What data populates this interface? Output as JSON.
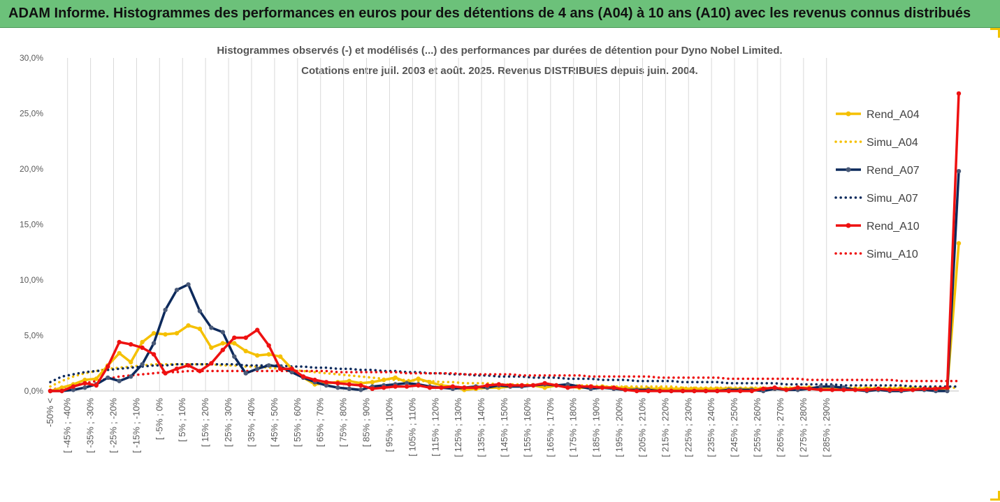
{
  "header": {
    "title": "ADAM Informe. Histogrammes des performances en euros pour des détentions de 4 ans (A04) à 10 ans (A10) avec les revenus connus distribués"
  },
  "chart_data": {
    "type": "line",
    "title": "Histogrammes observés (-) et modélisés (...) des performances par durées de détention pour Dyno Nobel Limited.",
    "subtitle": "Cotations entre juil. 2003 et août. 2025. Revenus DISTRIBUES depuis juin. 2004.",
    "xlabel": "",
    "ylabel": "",
    "ylim": [
      0,
      30
    ],
    "yticks": [
      "0,0%",
      "5,0%",
      "10,0%",
      "15,0%",
      "20,0%",
      "25,0%",
      "30,0%"
    ],
    "grid": "vertical",
    "legend_position": "right",
    "x_tick_labels": [
      "-50% <",
      "[ -45% ; -40%",
      "[ -35% ; -30%",
      "[ -25% ; -20%",
      "[ -15% ; -10%",
      "[ -5% ; 0%",
      "[ 5% ; 10%",
      "[ 15% ; 20%",
      "[ 25% ; 30%",
      "[ 35% ; 40%",
      "[ 45% ; 50%",
      "[ 55% ; 60%",
      "[ 65% ; 70%",
      "[ 75% ; 80%",
      "[ 85% ; 90%",
      "[ 95% ; 100%",
      "[ 105% ; 110%",
      "[ 115% ; 120%",
      "[ 125% ; 130%",
      "[ 135% ; 140%",
      "[ 145% ; 150%",
      "[ 155% ; 160%",
      "[ 165% ; 170%",
      "[ 175% ; 180%",
      "[ 185% ; 190%",
      "[ 195% ; 200%",
      "[ 205% ; 210%",
      "[ 215% ; 220%",
      "[ 225% ; 230%",
      "[ 235% ; 240%",
      "[ 245% ; 250%",
      "[ 255% ; 260%",
      "[ 265% ; 270%",
      "[ 275% ; 280%",
      "[ 285% ; 290%"
    ],
    "series": [
      {
        "name": "Rend_A04",
        "style": "solid",
        "color": "#f5c000",
        "values": [
          0,
          0.3,
          0.6,
          1.0,
          1.1,
          2.3,
          3.4,
          2.6,
          4.4,
          5.2,
          5.1,
          5.2,
          5.9,
          5.6,
          3.9,
          4.3,
          4.3,
          3.6,
          3.2,
          3.3,
          3.1,
          2.0,
          1.2,
          0.6,
          0.7,
          0.8,
          0.9,
          0.7,
          0.8,
          1.0,
          1.2,
          0.8,
          1.1,
          0.8,
          0.5,
          0.4,
          0.1,
          0.2,
          0.3,
          0.3,
          0.4,
          0.5,
          0.5,
          0.3,
          0.5,
          0.4,
          0.3,
          0.3,
          0.4,
          0.3,
          0.3,
          0.2,
          0.2,
          0.2,
          0.2,
          0.2,
          0.2,
          0.2,
          0.2,
          0.2,
          0.2,
          0.2,
          0.2,
          0.2,
          0.2,
          0.3,
          0.3,
          0.3,
          0.2,
          0.2,
          0.2,
          0.2,
          0.2,
          0.2,
          0.2,
          0.2,
          0.2,
          0.2,
          0.2,
          13.3
        ]
      },
      {
        "name": "Simu_A04",
        "style": "dotted",
        "color": "#f5c000",
        "values": [
          0.4,
          0.9,
          1.3,
          1.6,
          1.8,
          2.0,
          2.1,
          2.2,
          2.3,
          2.4,
          2.4,
          2.4,
          2.4,
          2.4,
          2.4,
          2.3,
          2.3,
          2.2,
          2.2,
          2.1,
          2.0,
          1.9,
          1.8,
          1.7,
          1.6,
          1.5,
          1.4,
          1.3,
          1.2,
          1.1,
          1.0,
          1.0,
          0.9,
          0.9,
          0.8,
          0.8,
          0.7,
          0.7,
          0.7,
          0.6,
          0.6,
          0.6,
          0.6,
          0.5,
          0.5,
          0.5,
          0.5,
          0.5,
          0.4,
          0.4,
          0.4,
          0.4,
          0.4,
          0.4,
          0.4,
          0.3,
          0.3,
          0.3,
          0.3,
          0.3,
          0.3,
          0.3,
          0.3,
          0.3,
          0.3,
          0.3,
          0.3,
          0.3,
          0.3,
          0.3,
          0.3,
          0.3,
          0.3,
          0.3,
          0.3,
          0.3,
          0.3,
          0.3,
          0.3,
          0.3
        ]
      },
      {
        "name": "Rend_A07",
        "style": "solid",
        "color": "#0d2a5c",
        "values": [
          0,
          0,
          0.1,
          0.3,
          0.6,
          1.2,
          0.9,
          1.3,
          2.4,
          4.3,
          7.3,
          9.1,
          9.6,
          7.2,
          5.7,
          5.3,
          3.1,
          1.6,
          2.0,
          2.3,
          2.2,
          1.7,
          1.2,
          0.8,
          0.5,
          0.3,
          0.2,
          0.1,
          0.4,
          0.5,
          0.6,
          0.7,
          0.6,
          0.4,
          0.3,
          0.2,
          0.3,
          0.4,
          0.3,
          0.5,
          0.4,
          0.4,
          0.5,
          0.6,
          0.5,
          0.6,
          0.4,
          0.2,
          0.3,
          0.2,
          0.1,
          0.1,
          0.1,
          0.0,
          0.0,
          0.0,
          0.0,
          0.0,
          0.0,
          0.1,
          0.1,
          0.1,
          0.0,
          0.2,
          0.1,
          0.1,
          0.2,
          0.4,
          0.4,
          0.3,
          0.1,
          0.0,
          0.1,
          0.0,
          0.0,
          0.1,
          0.1,
          0.0,
          0.0,
          19.8
        ]
      },
      {
        "name": "Simu_A07",
        "style": "dotted",
        "color": "#0d2a5c",
        "values": [
          0.8,
          1.3,
          1.5,
          1.7,
          1.8,
          1.9,
          2.0,
          2.1,
          2.2,
          2.3,
          2.3,
          2.4,
          2.4,
          2.4,
          2.4,
          2.4,
          2.4,
          2.3,
          2.3,
          2.3,
          2.3,
          2.2,
          2.2,
          2.1,
          2.1,
          2.0,
          2.0,
          1.9,
          1.9,
          1.8,
          1.8,
          1.7,
          1.7,
          1.6,
          1.6,
          1.5,
          1.5,
          1.4,
          1.4,
          1.3,
          1.3,
          1.3,
          1.2,
          1.2,
          1.2,
          1.1,
          1.1,
          1.1,
          1.0,
          1.0,
          1.0,
          0.9,
          0.9,
          0.9,
          0.9,
          0.8,
          0.8,
          0.8,
          0.8,
          0.7,
          0.7,
          0.7,
          0.7,
          0.7,
          0.6,
          0.6,
          0.6,
          0.6,
          0.6,
          0.5,
          0.5,
          0.5,
          0.5,
          0.5,
          0.5,
          0.4,
          0.4,
          0.4,
          0.4,
          0.4
        ]
      },
      {
        "name": "Rend_A10",
        "style": "solid",
        "color": "#ee1111",
        "values": [
          0,
          0,
          0.4,
          0.7,
          0.5,
          2.2,
          4.4,
          4.2,
          3.9,
          3.3,
          1.6,
          2.0,
          2.3,
          1.8,
          2.5,
          3.7,
          4.8,
          4.8,
          5.5,
          4.1,
          2.0,
          2.0,
          1.3,
          1.0,
          0.8,
          0.7,
          0.6,
          0.5,
          0.2,
          0.3,
          0.4,
          0.4,
          0.5,
          0.3,
          0.3,
          0.4,
          0.3,
          0.3,
          0.5,
          0.6,
          0.5,
          0.5,
          0.5,
          0.7,
          0.5,
          0.3,
          0.4,
          0.4,
          0.3,
          0.3,
          0.1,
          0.0,
          0.0,
          0.0,
          0.0,
          0.0,
          0.0,
          0.0,
          0.0,
          0.0,
          0.0,
          0.0,
          0.2,
          0.3,
          0.1,
          0.3,
          0.2,
          0.1,
          0.1,
          0.1,
          0.1,
          0.1,
          0.2,
          0.1,
          0.1,
          0.1,
          0.2,
          0.2,
          0.3,
          26.8
        ]
      },
      {
        "name": "Simu_A10",
        "style": "dotted",
        "color": "#ee1111",
        "values": [
          0.1,
          0.3,
          0.5,
          0.7,
          0.9,
          1.1,
          1.3,
          1.4,
          1.5,
          1.6,
          1.7,
          1.7,
          1.8,
          1.8,
          1.8,
          1.8,
          1.8,
          1.8,
          1.8,
          1.8,
          1.8,
          1.8,
          1.8,
          1.8,
          1.8,
          1.7,
          1.7,
          1.7,
          1.7,
          1.7,
          1.7,
          1.6,
          1.6,
          1.6,
          1.6,
          1.6,
          1.5,
          1.5,
          1.5,
          1.5,
          1.5,
          1.4,
          1.4,
          1.4,
          1.4,
          1.4,
          1.4,
          1.3,
          1.3,
          1.3,
          1.3,
          1.3,
          1.3,
          1.2,
          1.2,
          1.2,
          1.2,
          1.2,
          1.2,
          1.1,
          1.1,
          1.1,
          1.1,
          1.1,
          1.1,
          1.1,
          1.0,
          1.0,
          1.0,
          1.0,
          1.0,
          1.0,
          1.0,
          1.0,
          0.9,
          0.9,
          0.9,
          0.9,
          0.9,
          0.9
        ]
      }
    ]
  }
}
